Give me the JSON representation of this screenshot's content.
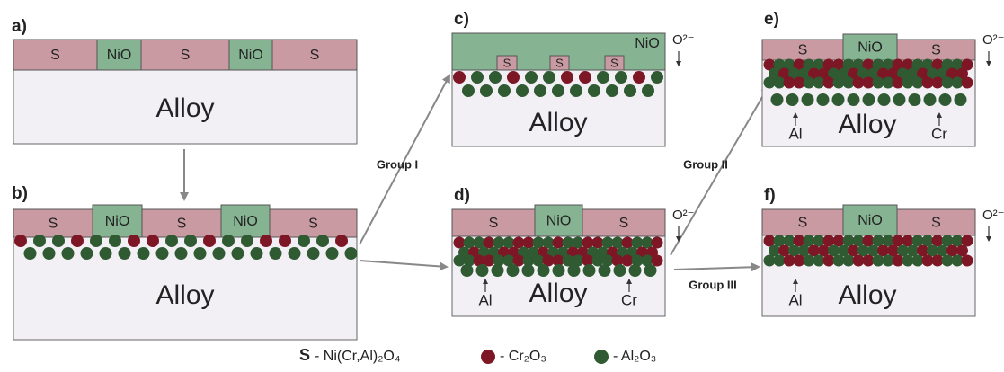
{
  "panels": [
    {
      "label": "a)",
      "layers": [
        "S",
        "NiO",
        "S",
        "NiO",
        "S"
      ],
      "substrate": "Alloy"
    },
    {
      "label": "b)",
      "layers": [
        "S",
        "NiO",
        "S",
        "NiO",
        "S"
      ],
      "substrate": "Alloy"
    },
    {
      "label": "c)",
      "layers": [
        "NiO",
        "S",
        "S",
        "S"
      ],
      "substrate": "Alloy",
      "oxygen": "O²⁻"
    },
    {
      "label": "d)",
      "layers": [
        "S",
        "NiO",
        "S"
      ],
      "substrate": "Alloy",
      "oxygen": "O²⁻",
      "markers": [
        "Al",
        "Cr"
      ]
    },
    {
      "label": "e)",
      "layers": [
        "S",
        "NiO",
        "S"
      ],
      "substrate": "Alloy",
      "oxygen": "O²⁻",
      "markers": [
        "Al",
        "Cr"
      ]
    },
    {
      "label": "f)",
      "layers": [
        "S",
        "NiO",
        "S"
      ],
      "substrate": "Alloy",
      "oxygen": "O²⁻",
      "markers": [
        "Al"
      ]
    }
  ],
  "arrows": [
    "Group I",
    "Group II",
    "Group III"
  ],
  "legend": [
    {
      "symbol": "S",
      "text": "- Ni(Cr,Al)₂O₄"
    },
    {
      "text": "- Cr₂O₃"
    },
    {
      "text": "- Al₂O₃"
    }
  ]
}
